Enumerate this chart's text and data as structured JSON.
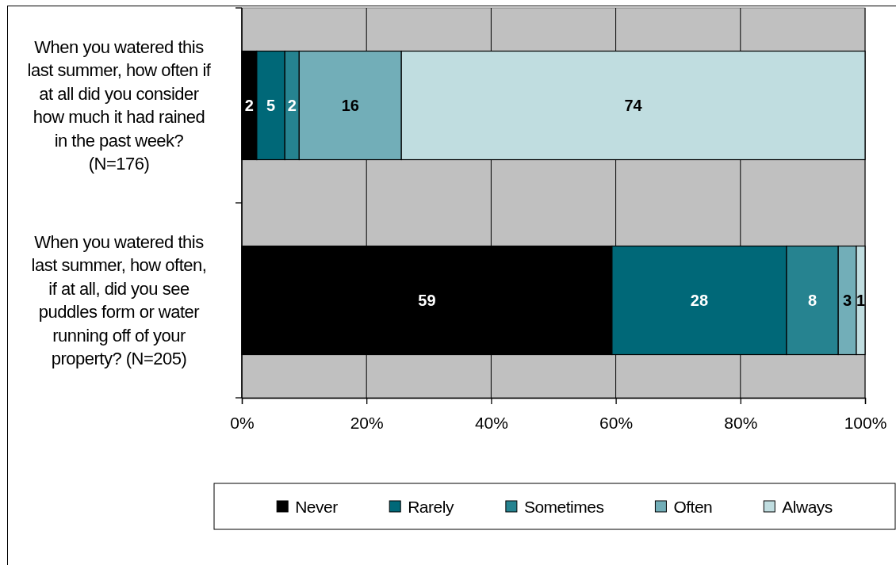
{
  "chart_data": {
    "type": "bar",
    "orientation": "horizontal",
    "stacked": true,
    "categories": [
      "When you watered this last summer, how often if at all did you consider how much it had rained in the past week? (N=176)",
      "When you watered this last summer, how often, if at all, did you see puddles form or water running off of your property? (N=205)"
    ],
    "series": [
      {
        "name": "Never",
        "color": "#000000",
        "values": [
          2.4,
          59.4
        ],
        "value_labels": [
          "2",
          "59"
        ]
      },
      {
        "name": "Rarely",
        "color": "#006878",
        "values": [
          4.5,
          28.0
        ],
        "value_labels": [
          "5",
          "28"
        ]
      },
      {
        "name": "Sometimes",
        "color": "#268390",
        "values": [
          2.3,
          8.3
        ],
        "value_labels": [
          "2",
          "8"
        ]
      },
      {
        "name": "Often",
        "color": "#72aeb8",
        "values": [
          16.4,
          2.9
        ],
        "value_labels": [
          "16",
          "3"
        ]
      },
      {
        "name": "Always",
        "color": "#c0dde0",
        "values": [
          74.4,
          1.4
        ],
        "value_labels": [
          "74",
          "1"
        ]
      }
    ],
    "xlim": [
      0,
      100
    ],
    "xticks": [
      {
        "value": 0,
        "label": "0%"
      },
      {
        "value": 20,
        "label": "20%"
      },
      {
        "value": 40,
        "label": "40%"
      },
      {
        "value": 60,
        "label": "60%"
      },
      {
        "value": 80,
        "label": "80%"
      },
      {
        "value": 100,
        "label": "100%"
      }
    ],
    "grid": "x",
    "legend": "bottom"
  }
}
